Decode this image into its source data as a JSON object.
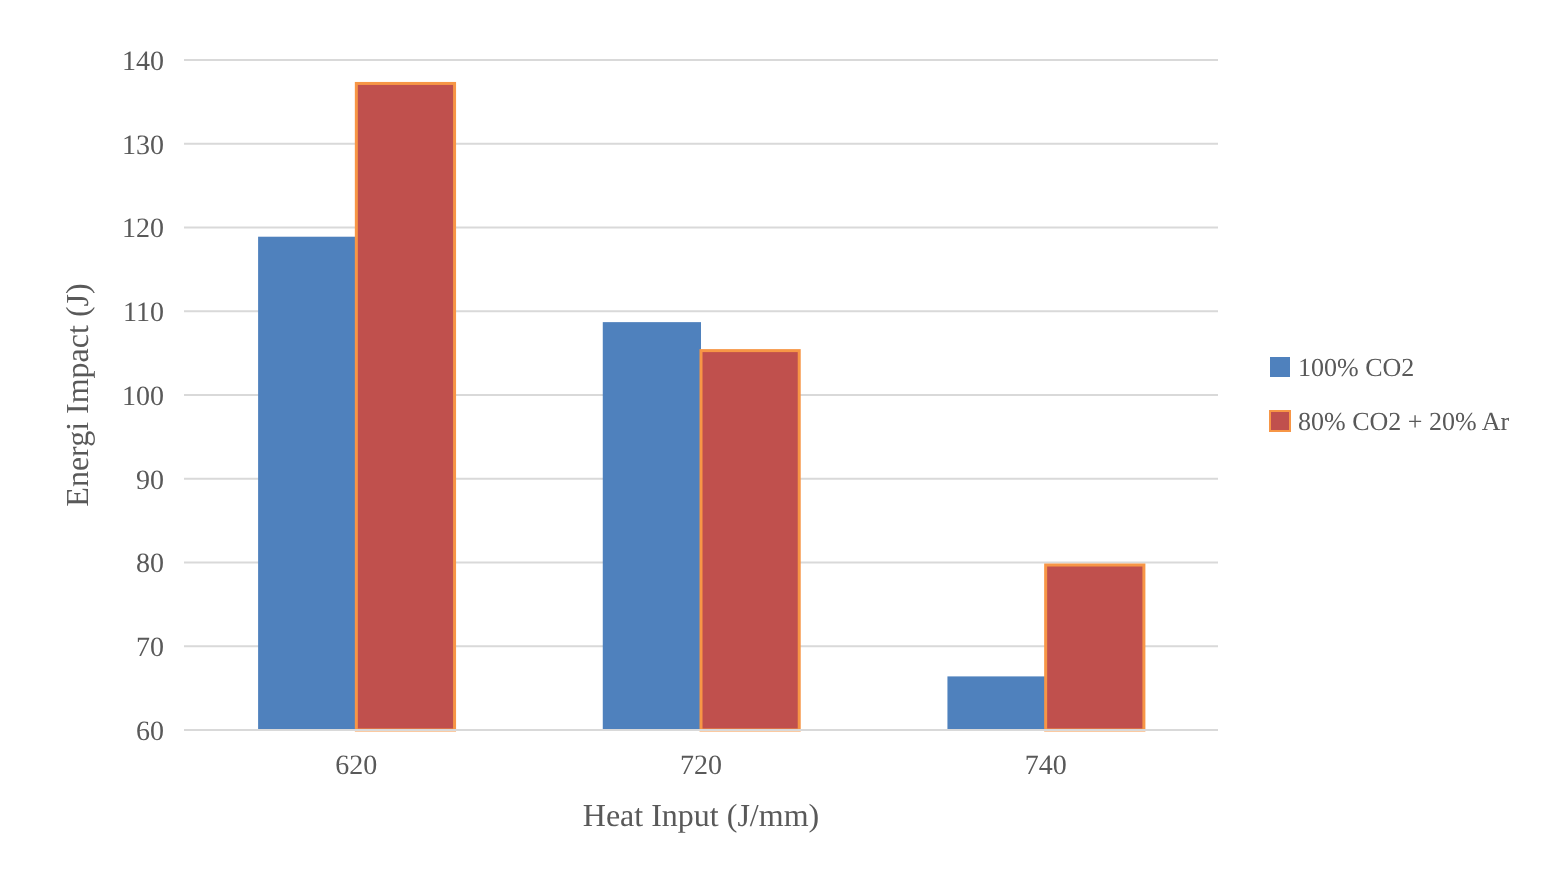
{
  "chart_data": {
    "type": "bar",
    "xlabel": "Heat Input (J/mm)",
    "ylabel": "Energi Impact (J)",
    "categories": [
      "620",
      "720",
      "740"
    ],
    "series": [
      {
        "name": "100% CO2",
        "color": "#4f81bd",
        "values": [
          118.9,
          108.7,
          66.4
        ]
      },
      {
        "name": "80% CO2 + 20% Ar",
        "color": "#c0504d",
        "values": [
          137.2,
          105.3,
          79.7
        ]
      }
    ],
    "ylim": [
      60,
      140
    ],
    "yticks": [
      60,
      70,
      80,
      90,
      100,
      110,
      120,
      130,
      140
    ],
    "grid": "y",
    "legend": "right"
  }
}
